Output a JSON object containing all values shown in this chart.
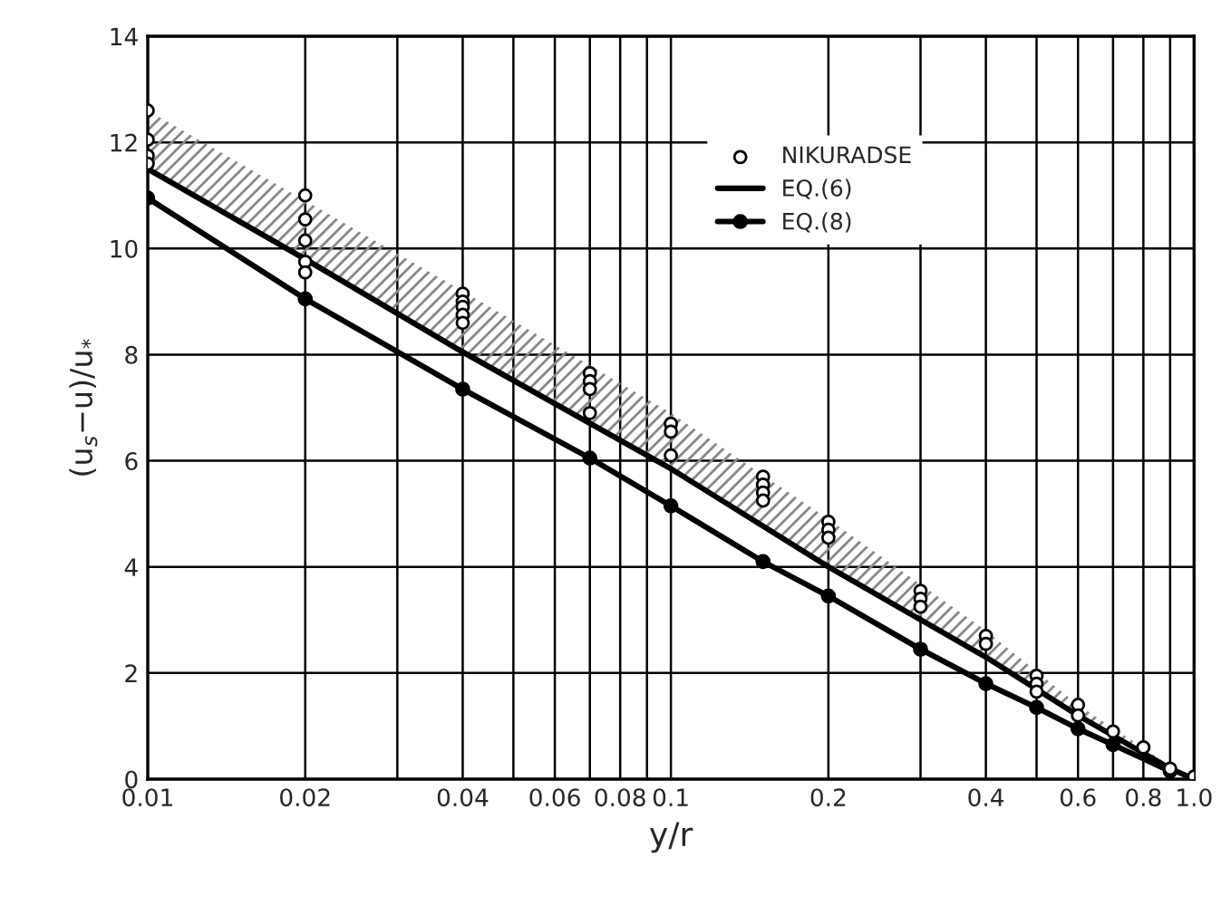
{
  "chart_data": {
    "type": "line",
    "xlabel": "y/r",
    "ylabel": "(u$_{s}$−u)/u$_{*}$",
    "log": "x",
    "grid": true,
    "legend": "top right",
    "xlim": [
      0.01,
      1.0
    ],
    "ylim": [
      0,
      14
    ],
    "xticks": [
      {
        "value": 0.01,
        "label": "0.01"
      },
      {
        "value": 0.02,
        "label": "0.02"
      },
      {
        "value": 0.03,
        "label": null
      },
      {
        "value": 0.04,
        "label": "0.04"
      },
      {
        "value": 0.05,
        "label": null
      },
      {
        "value": 0.06,
        "label": "0.06"
      },
      {
        "value": 0.07,
        "label": null
      },
      {
        "value": 0.08,
        "label": "0.08"
      },
      {
        "value": 0.09,
        "label": null
      },
      {
        "value": 0.1,
        "label": "0.1"
      },
      {
        "value": 0.2,
        "label": "0.2"
      },
      {
        "value": 0.3,
        "label": null
      },
      {
        "value": 0.4,
        "label": "0.4"
      },
      {
        "value": 0.5,
        "label": null
      },
      {
        "value": 0.6,
        "label": "0.6"
      },
      {
        "value": 0.7,
        "label": null
      },
      {
        "value": 0.8,
        "label": "0.8"
      },
      {
        "value": 0.9,
        "label": null
      },
      {
        "value": 1.0,
        "label": "1.0"
      }
    ],
    "yticks": [
      0,
      2,
      4,
      6,
      8,
      10,
      12,
      14
    ],
    "series": [
      {
        "name": "NIKURADSE",
        "type": "scatter",
        "marker": "circle",
        "color": "#000000",
        "x": [
          0.01,
          0.01,
          0.01,
          0.01,
          0.02,
          0.02,
          0.02,
          0.02,
          0.02,
          0.04,
          0.04,
          0.04,
          0.04,
          0.04,
          0.07,
          0.07,
          0.07,
          0.07,
          0.1,
          0.1,
          0.1,
          0.15,
          0.15,
          0.15,
          0.15,
          0.2,
          0.2,
          0.2,
          0.3,
          0.3,
          0.3,
          0.4,
          0.4,
          0.5,
          0.5,
          0.5,
          0.6,
          0.6,
          0.7,
          0.8,
          0.9,
          1.0
        ],
        "values": [
          12.6,
          12.05,
          11.75,
          11.6,
          11.0,
          10.55,
          10.15,
          9.75,
          9.55,
          9.15,
          9.0,
          8.9,
          8.75,
          8.6,
          7.65,
          7.5,
          7.35,
          6.9,
          6.7,
          6.55,
          6.1,
          5.7,
          5.55,
          5.4,
          5.25,
          4.85,
          4.7,
          4.55,
          3.55,
          3.4,
          3.25,
          2.7,
          2.55,
          1.95,
          1.8,
          1.65,
          1.4,
          1.2,
          0.9,
          0.6,
          0.2,
          0.05
        ]
      },
      {
        "name": "EQ.(6)",
        "marker": "none",
        "color": "#000000",
        "x": [
          0.01,
          0.02,
          0.04,
          0.1,
          0.2,
          0.4,
          0.6,
          0.9,
          1.0
        ],
        "values": [
          11.5,
          9.8,
          8.05,
          5.85,
          4.0,
          2.3,
          1.2,
          0.2,
          0
        ],
        "lower": [
          11.5,
          9.8,
          8.05,
          5.85,
          4.0,
          2.3,
          1.2,
          0.2,
          0
        ],
        "upper": [
          12.6,
          10.9,
          9.2,
          6.9,
          4.9,
          2.8,
          1.4,
          0.25,
          0
        ]
      },
      {
        "name": "EQ.(8)",
        "marker": "circle",
        "color": "#000000",
        "x": [
          0.01,
          0.02,
          0.04,
          0.07,
          0.1,
          0.15,
          0.2,
          0.3,
          0.4,
          0.5,
          0.6,
          0.7,
          0.9
        ],
        "values": [
          10.95,
          9.05,
          7.35,
          6.05,
          5.15,
          4.1,
          3.45,
          2.45,
          1.8,
          1.35,
          0.95,
          0.65,
          0.15
        ]
      }
    ]
  }
}
